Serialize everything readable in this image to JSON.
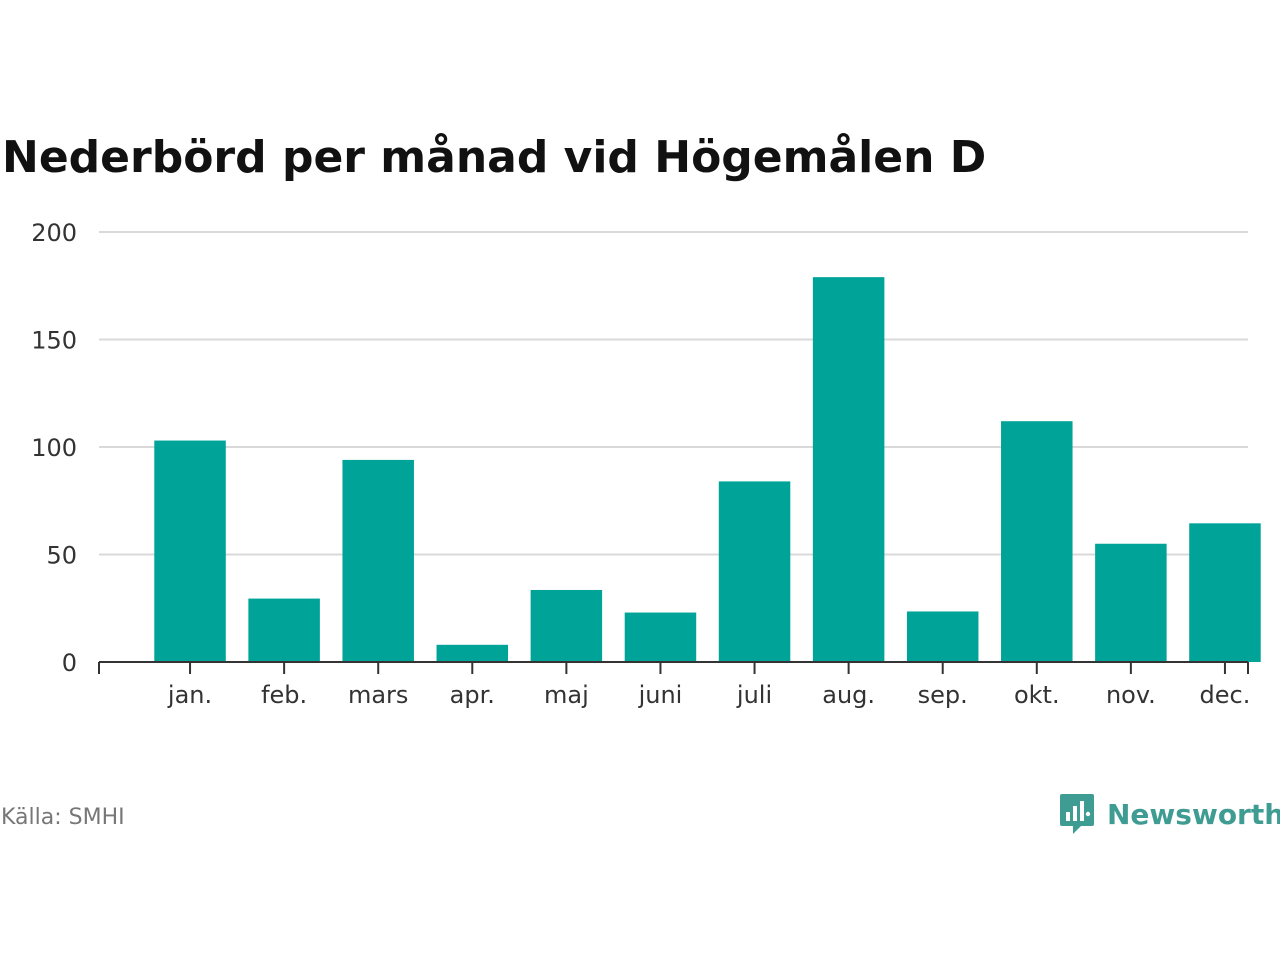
{
  "title": "Nederbörd per månad vid Högemålen D",
  "source": "Källa: SMHI",
  "brand": {
    "name": "Newsworthy",
    "color": "#3f9c93",
    "icon": "bar-chart-speech-bubble-icon"
  },
  "colors": {
    "bar": "#00a398",
    "grid": "#d9d9d9",
    "axis": "#333333"
  },
  "chart_data": {
    "type": "bar",
    "title": "Nederbörd per månad vid Högemålen D",
    "xlabel": "",
    "ylabel": "",
    "categories": [
      "jan.",
      "feb.",
      "mars",
      "apr.",
      "maj",
      "juni",
      "juli",
      "aug.",
      "sep.",
      "okt.",
      "nov.",
      "dec."
    ],
    "values": [
      103,
      29.5,
      94,
      8,
      33.5,
      23,
      84,
      179,
      23.5,
      112,
      55,
      64.5
    ],
    "ylim": [
      0,
      200
    ],
    "yticks": [
      0,
      50,
      100,
      150,
      200
    ],
    "grid": true,
    "legend": "none"
  }
}
